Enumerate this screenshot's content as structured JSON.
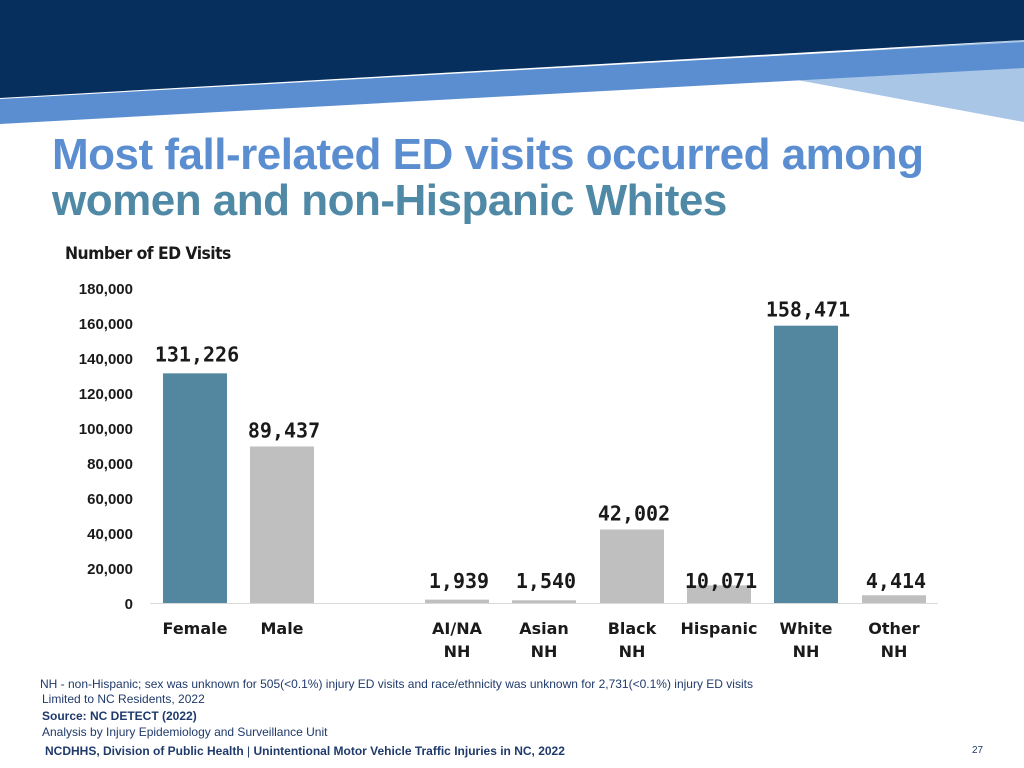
{
  "slide": {
    "title_line1": "Most fall-related ED visits occurred among",
    "title_line2": "women and non-Hispanic Whites",
    "footnotes": [
      "NH - non-Hispanic; sex was unknown for 505(<0.1%) injury ED visits and race/ethnicity was unknown for 2,731(<0.1%) injury ED visits",
      "Limited to NC Residents, 2022",
      "Source: NC DETECT (2022)",
      "Analysis by Injury Epidemiology and Surveillance Unit"
    ],
    "footer": {
      "org": "NCDHHS, Division of Public Health",
      "separator": "|",
      "topic": "Unintentional Motor Vehicle Traffic Injuries in NC, 2022"
    },
    "page_number": "27"
  },
  "colors": {
    "banner_dark": "#062f5e",
    "banner_mid": "#5b8ed0",
    "banner_light": "#a9c6e6",
    "highlight_bar": "#53869f",
    "other_bar": "#bfbfbf"
  },
  "chart_data": {
    "type": "bar",
    "ylabel": "Number of ED Visits",
    "ylim": [
      0,
      180000
    ],
    "yticks": [
      "0",
      "20,000",
      "40,000",
      "60,000",
      "80,000",
      "100,000",
      "120,000",
      "140,000",
      "160,000",
      "180,000"
    ],
    "grid": false,
    "groups": [
      "sex",
      "race_ethnicity"
    ],
    "bars": [
      {
        "label_lines": [
          "Female"
        ],
        "value": 131226,
        "value_label": "131,226",
        "highlight": true,
        "group": "sex"
      },
      {
        "label_lines": [
          "Male"
        ],
        "value": 89437,
        "value_label": "89,437",
        "highlight": false,
        "group": "sex"
      },
      {
        "label_lines": [
          "AI/NA",
          "NH"
        ],
        "value": 1939,
        "value_label": "1,939",
        "highlight": false,
        "group": "race_ethnicity"
      },
      {
        "label_lines": [
          "Asian",
          "NH"
        ],
        "value": 1540,
        "value_label": "1,540",
        "highlight": false,
        "group": "race_ethnicity"
      },
      {
        "label_lines": [
          "Black",
          "NH"
        ],
        "value": 42002,
        "value_label": "42,002",
        "highlight": false,
        "group": "race_ethnicity"
      },
      {
        "label_lines": [
          "Hispanic"
        ],
        "value": 10071,
        "value_label": "10,071",
        "highlight": false,
        "group": "race_ethnicity"
      },
      {
        "label_lines": [
          "White",
          "NH"
        ],
        "value": 158471,
        "value_label": "158,471",
        "highlight": true,
        "group": "race_ethnicity"
      },
      {
        "label_lines": [
          "Other",
          "NH"
        ],
        "value": 4414,
        "value_label": "4,414",
        "highlight": false,
        "group": "race_ethnicity"
      }
    ]
  }
}
